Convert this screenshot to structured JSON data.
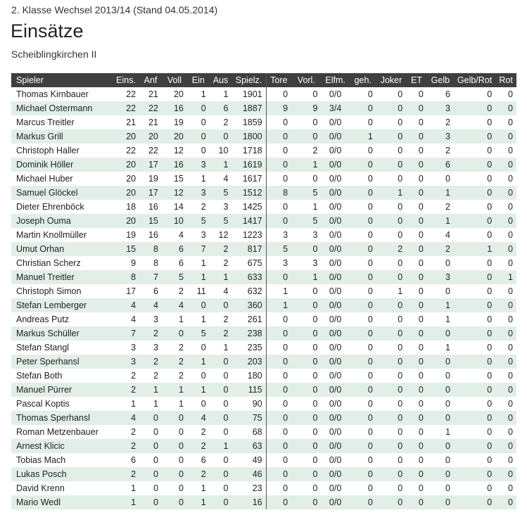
{
  "header": {
    "league": "2. Klasse Wechsel 2013/14 (Stand 04.05.2014)",
    "title": "Einsätze",
    "team": "Scheiblingkirchen II"
  },
  "table": {
    "columns": [
      "Spieler",
      "Eins.",
      "Anf",
      "Voll",
      "Ein",
      "Aus",
      "Spielz.",
      "Tore",
      "Vorl.",
      "Elfm.",
      "geh.",
      "Joker",
      "ET",
      "Gelb",
      "Gelb/Rot",
      "Rot"
    ],
    "rows": [
      [
        "Thomas Kirnbauer",
        "22",
        "21",
        "20",
        "1",
        "1",
        "1901",
        "0",
        "0",
        "0/0",
        "0",
        "0",
        "0",
        "6",
        "0",
        "0"
      ],
      [
        "Michael Ostermann",
        "22",
        "22",
        "16",
        "0",
        "6",
        "1887",
        "9",
        "9",
        "3/4",
        "0",
        "0",
        "0",
        "3",
        "0",
        "0"
      ],
      [
        "Marcus Treitler",
        "21",
        "21",
        "19",
        "0",
        "2",
        "1859",
        "0",
        "0",
        "0/0",
        "0",
        "0",
        "0",
        "2",
        "0",
        "0"
      ],
      [
        "Markus Grill",
        "20",
        "20",
        "20",
        "0",
        "0",
        "1800",
        "0",
        "0",
        "0/0",
        "1",
        "0",
        "0",
        "3",
        "0",
        "0"
      ],
      [
        "Christoph Haller",
        "22",
        "22",
        "12",
        "0",
        "10",
        "1718",
        "0",
        "2",
        "0/0",
        "0",
        "0",
        "0",
        "2",
        "0",
        "0"
      ],
      [
        "Dominik Höller",
        "20",
        "17",
        "16",
        "3",
        "1",
        "1619",
        "0",
        "1",
        "0/0",
        "0",
        "0",
        "0",
        "6",
        "0",
        "0"
      ],
      [
        "Michael Huber",
        "20",
        "19",
        "15",
        "1",
        "4",
        "1617",
        "0",
        "0",
        "0/0",
        "0",
        "0",
        "0",
        "0",
        "0",
        "0"
      ],
      [
        "Samuel Glöckel",
        "20",
        "17",
        "12",
        "3",
        "5",
        "1512",
        "8",
        "5",
        "0/0",
        "0",
        "1",
        "0",
        "1",
        "0",
        "0"
      ],
      [
        "Dieter Ehrenböck",
        "18",
        "16",
        "14",
        "2",
        "3",
        "1425",
        "0",
        "1",
        "0/0",
        "0",
        "0",
        "0",
        "2",
        "0",
        "0"
      ],
      [
        "Joseph Ouma",
        "20",
        "15",
        "10",
        "5",
        "5",
        "1417",
        "0",
        "5",
        "0/0",
        "0",
        "0",
        "0",
        "1",
        "0",
        "0"
      ],
      [
        "Martin Knollmüller",
        "19",
        "16",
        "4",
        "3",
        "12",
        "1223",
        "3",
        "3",
        "0/0",
        "0",
        "0",
        "0",
        "4",
        "0",
        "0"
      ],
      [
        "Umut Orhan",
        "15",
        "8",
        "6",
        "7",
        "2",
        "817",
        "5",
        "0",
        "0/0",
        "0",
        "2",
        "0",
        "2",
        "1",
        "0"
      ],
      [
        "Christian Scherz",
        "9",
        "8",
        "6",
        "1",
        "2",
        "675",
        "3",
        "3",
        "0/0",
        "0",
        "0",
        "0",
        "0",
        "0",
        "0"
      ],
      [
        "Manuel Treitler",
        "8",
        "7",
        "5",
        "1",
        "1",
        "633",
        "0",
        "1",
        "0/0",
        "0",
        "0",
        "0",
        "3",
        "0",
        "1"
      ],
      [
        "Christoph Simon",
        "17",
        "6",
        "2",
        "11",
        "4",
        "632",
        "1",
        "0",
        "0/0",
        "0",
        "1",
        "0",
        "0",
        "0",
        "0"
      ],
      [
        "Stefan Lemberger",
        "4",
        "4",
        "4",
        "0",
        "0",
        "360",
        "1",
        "0",
        "0/0",
        "0",
        "0",
        "0",
        "1",
        "0",
        "0"
      ],
      [
        "Andreas Putz",
        "4",
        "3",
        "1",
        "1",
        "2",
        "261",
        "0",
        "0",
        "0/0",
        "0",
        "0",
        "0",
        "1",
        "0",
        "0"
      ],
      [
        "Markus Schüller",
        "7",
        "2",
        "0",
        "5",
        "2",
        "238",
        "0",
        "0",
        "0/0",
        "0",
        "0",
        "0",
        "0",
        "0",
        "0"
      ],
      [
        "Stefan Stangl",
        "3",
        "3",
        "2",
        "0",
        "1",
        "235",
        "0",
        "0",
        "0/0",
        "0",
        "0",
        "0",
        "1",
        "0",
        "0"
      ],
      [
        "Peter Sperhansl",
        "3",
        "2",
        "2",
        "1",
        "0",
        "203",
        "0",
        "0",
        "0/0",
        "0",
        "0",
        "0",
        "0",
        "0",
        "0"
      ],
      [
        "Stefan Both",
        "2",
        "2",
        "2",
        "0",
        "0",
        "180",
        "0",
        "0",
        "0/0",
        "0",
        "0",
        "0",
        "0",
        "0",
        "0"
      ],
      [
        "Manuel Pürrer",
        "2",
        "1",
        "1",
        "1",
        "0",
        "115",
        "0",
        "0",
        "0/0",
        "0",
        "0",
        "0",
        "0",
        "0",
        "0"
      ],
      [
        "Pascal Koptis",
        "1",
        "1",
        "1",
        "0",
        "0",
        "90",
        "0",
        "0",
        "0/0",
        "0",
        "0",
        "0",
        "0",
        "0",
        "0"
      ],
      [
        "Thomas Sperhansl",
        "4",
        "0",
        "0",
        "4",
        "0",
        "75",
        "0",
        "0",
        "0/0",
        "0",
        "0",
        "0",
        "0",
        "0",
        "0"
      ],
      [
        "Roman Metzenbauer",
        "2",
        "0",
        "0",
        "2",
        "0",
        "68",
        "0",
        "0",
        "0/0",
        "0",
        "0",
        "0",
        "1",
        "0",
        "0"
      ],
      [
        "Arnest Klicic",
        "2",
        "0",
        "0",
        "2",
        "1",
        "63",
        "0",
        "0",
        "0/0",
        "0",
        "0",
        "0",
        "0",
        "0",
        "0"
      ],
      [
        "Tobias Mach",
        "6",
        "0",
        "0",
        "6",
        "0",
        "49",
        "0",
        "0",
        "0/0",
        "0",
        "0",
        "0",
        "0",
        "0",
        "0"
      ],
      [
        "Lukas Posch",
        "2",
        "0",
        "0",
        "2",
        "0",
        "46",
        "0",
        "0",
        "0/0",
        "0",
        "0",
        "0",
        "0",
        "0",
        "0"
      ],
      [
        "David Krenn",
        "1",
        "0",
        "0",
        "1",
        "0",
        "23",
        "0",
        "0",
        "0/0",
        "0",
        "0",
        "0",
        "0",
        "0",
        "0"
      ],
      [
        "Mario Wedl",
        "1",
        "0",
        "0",
        "1",
        "0",
        "16",
        "0",
        "0",
        "0/0",
        "0",
        "0",
        "0",
        "0",
        "0",
        "0"
      ]
    ]
  },
  "colors": {
    "header_bg": "#3f3f3f",
    "row_alt_bg": "#e2efe8"
  }
}
